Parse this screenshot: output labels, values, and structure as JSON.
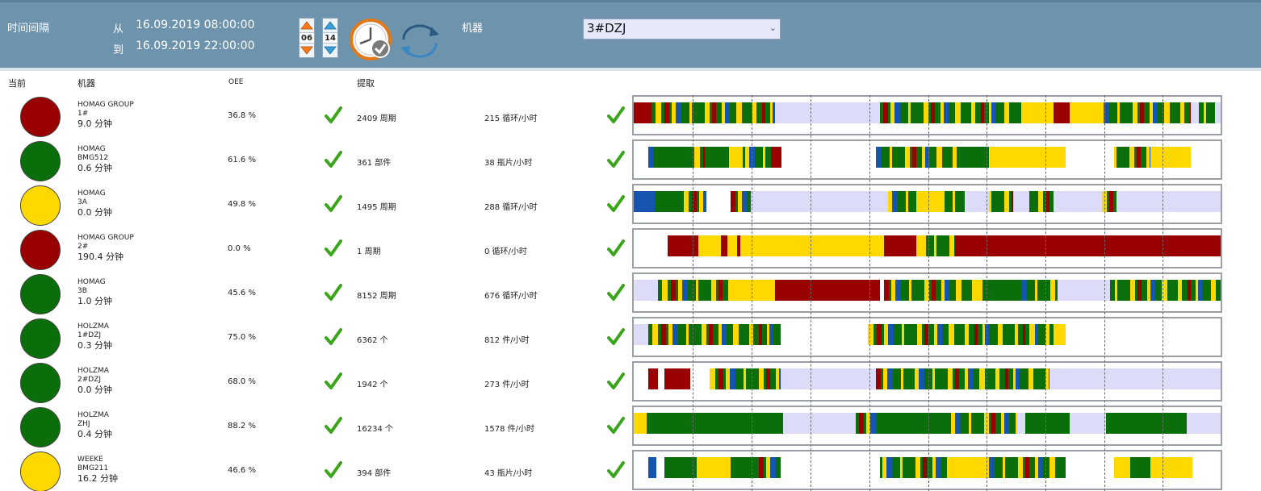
{
  "toolbar": {
    "interval_label": "时间间隔",
    "from_label": "从",
    "from_value": "16.09.2019 08:00:00",
    "to_label": "到",
    "to_value": "16.09.2019 22:00:00",
    "spin_start_hour": "06",
    "spin_end_hour": "14",
    "machine_label": "机器",
    "machine_selected": "3#DZJ"
  },
  "columns": {
    "current": "当前",
    "machine": "机器",
    "oee": "OEE",
    "extract": "提取"
  },
  "colors": {
    "red": "#990000",
    "green": "#0a6e0a",
    "yellow": "#ffd800",
    "blue": "#1555b0",
    "idle": "#dcdcf8",
    "toolbar": "#6e93ad",
    "check": "#3aa51a"
  },
  "rows": [
    {
      "brand": "HOMAG GROUP",
      "model": "1#",
      "time": "9.0 分钟",
      "lamp": "red",
      "oee": "36.8 %",
      "count": "2409 周期",
      "rate": "215 循环/小时"
    },
    {
      "brand": "HOMAG",
      "model": "BMG512",
      "time": "0.6 分钟",
      "lamp": "green",
      "oee": "61.6 %",
      "count": "361 部件",
      "rate": "38 瓶片/小时"
    },
    {
      "brand": "HOMAG",
      "model": "3A",
      "time": "0.0 分钟",
      "lamp": "yellow",
      "oee": "49.8 %",
      "count": "1495 周期",
      "rate": "288 循环/小时"
    },
    {
      "brand": "HOMAG GROUP",
      "model": "2#",
      "time": "190.4 分钟",
      "lamp": "red",
      "oee": "0.0 %",
      "count": "1 周期",
      "rate": "0 循环/小时"
    },
    {
      "brand": "HOMAG",
      "model": "3B",
      "time": "1.0 分钟",
      "lamp": "green",
      "oee": "45.6 %",
      "count": "8152 周期",
      "rate": "676 循环/小时"
    },
    {
      "brand": "HOLZMA",
      "model": "1#DZJ",
      "time": "0.3 分钟",
      "lamp": "green",
      "oee": "75.0 %",
      "count": "6362 个",
      "rate": "812 件/小时"
    },
    {
      "brand": "HOLZMA",
      "model": "2#DZJ",
      "time": "0.0 分钟",
      "lamp": "green",
      "oee": "68.0 %",
      "count": "1942 个",
      "rate": "273 件/小时"
    },
    {
      "brand": "HOLZMA",
      "model": "ZHJ",
      "time": "0.4 分钟",
      "lamp": "green",
      "oee": "88.2 %",
      "count": "16234 个",
      "rate": "1578 件/小时"
    },
    {
      "brand": "WEEKE",
      "model": "BMG211",
      "time": "16.2 分钟",
      "lamp": "yellow",
      "oee": "46.6 %",
      "count": "394 部件",
      "rate": "43 瓶片/小时"
    }
  ]
}
